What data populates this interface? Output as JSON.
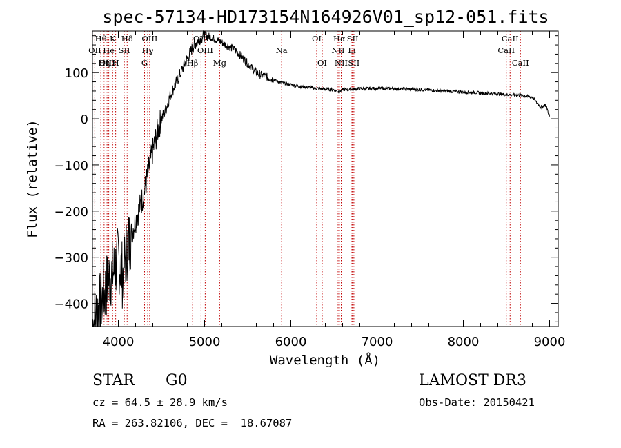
{
  "chart_data": {
    "type": "line",
    "title": "spec-57134-HD173154N164926V01_sp12-051.fits",
    "xlabel": "Wavelength (Å)",
    "ylabel": "Flux (relative)",
    "xlim": [
      3700,
      9100
    ],
    "ylim": [
      -450,
      190
    ],
    "xticks": [
      4000,
      5000,
      6000,
      7000,
      8000,
      9000
    ],
    "xtick_labels": [
      "4000",
      "5000",
      "6000",
      "7000",
      "8000",
      "9000"
    ],
    "yticks": [
      -400,
      -300,
      -200,
      -100,
      0,
      100
    ],
    "ytick_labels": [
      "−400",
      "−300",
      "−200",
      "−100",
      "0",
      "100"
    ],
    "series": [
      {
        "name": "spectrum",
        "x": [
          3700,
          3750,
          3800,
          3850,
          3900,
          3950,
          4000,
          4050,
          4100,
          4150,
          4200,
          4250,
          4300,
          4350,
          4400,
          4450,
          4500,
          4550,
          4600,
          4650,
          4700,
          4750,
          4800,
          4850,
          4900,
          4950,
          5000,
          5050,
          5100,
          5150,
          5200,
          5250,
          5300,
          5350,
          5400,
          5450,
          5500,
          5550,
          5600,
          5650,
          5700,
          5750,
          5800,
          5850,
          5900,
          5950,
          6000,
          6100,
          6200,
          6300,
          6400,
          6500,
          6560,
          6600,
          6700,
          6800,
          7000,
          7200,
          7400,
          7600,
          7800,
          8000,
          8200,
          8400,
          8500,
          8600,
          8700,
          8800,
          8850,
          8900,
          8950,
          8975,
          9000
        ],
        "y": [
          -445,
          -420,
          -400,
          -370,
          -340,
          -330,
          -300,
          -340,
          -280,
          -250,
          -220,
          -190,
          -160,
          -110,
          -70,
          -30,
          0,
          20,
          50,
          70,
          90,
          110,
          130,
          150,
          165,
          175,
          180,
          178,
          175,
          170,
          165,
          160,
          155,
          150,
          140,
          130,
          120,
          110,
          100,
          95,
          92,
          88,
          85,
          80,
          78,
          76,
          74,
          70,
          68,
          66,
          64,
          63,
          58,
          63,
          64,
          65,
          66,
          65,
          64,
          62,
          60,
          58,
          56,
          54,
          52,
          52,
          50,
          47,
          35,
          25,
          30,
          20,
          5
        ]
      }
    ],
    "spectral_lines": [
      {
        "label": "Hθ",
        "wave": 3797,
        "row": 1
      },
      {
        "label": "OII",
        "wave": 3727,
        "row": 2
      },
      {
        "label": "OIII",
        "wave": 3869,
        "row": 3
      },
      {
        "label": "He",
        "wave": 3889,
        "row": 2
      },
      {
        "label": "Hη",
        "wave": 3835,
        "row": 3
      },
      {
        "label": "K",
        "wave": 3934,
        "row": 1
      },
      {
        "label": "H",
        "wave": 3969,
        "row": 3
      },
      {
        "label": "SII",
        "wave": 4069,
        "row": 2
      },
      {
        "label": "Hδ",
        "wave": 4102,
        "row": 1
      },
      {
        "label": "OIII",
        "wave": 4363,
        "row": 1
      },
      {
        "label": "Hγ",
        "wave": 4340,
        "row": 2
      },
      {
        "label": "G",
        "wave": 4304,
        "row": 3
      },
      {
        "label": "OIII",
        "wave": 4959,
        "row": 1
      },
      {
        "label": "OIII",
        "wave": 5007,
        "row": 2
      },
      {
        "label": "Hβ",
        "wave": 4861,
        "row": 3
      },
      {
        "label": "Mg",
        "wave": 5175,
        "row": 3
      },
      {
        "label": "Na",
        "wave": 5893,
        "row": 2
      },
      {
        "label": "OI",
        "wave": 6300,
        "row": 1
      },
      {
        "label": "OI",
        "wave": 6364,
        "row": 3
      },
      {
        "label": "Hα",
        "wave": 6563,
        "row": 1
      },
      {
        "label": "NII",
        "wave": 6548,
        "row": 2
      },
      {
        "label": "NII",
        "wave": 6584,
        "row": 3
      },
      {
        "label": "SII",
        "wave": 6717,
        "row": 1
      },
      {
        "label": "Li",
        "wave": 6708,
        "row": 2
      },
      {
        "label": "SII",
        "wave": 6731,
        "row": 3
      },
      {
        "label": "CaII",
        "wave": 8542,
        "row": 1
      },
      {
        "label": "CaII",
        "wave": 8498,
        "row": 2
      },
      {
        "label": "CaII",
        "wave": 8662,
        "row": 3
      }
    ],
    "line_color": "#000000",
    "marker_color": "#c00000"
  },
  "info": {
    "object_class": "STAR",
    "subclass": "G0",
    "survey": "LAMOST DR3",
    "redshift": "cz = 64.5 ± 28.9 km/s",
    "obs_date": "Obs-Date: 20150421",
    "coords": "RA = 263.82106, DEC =  18.67087"
  }
}
